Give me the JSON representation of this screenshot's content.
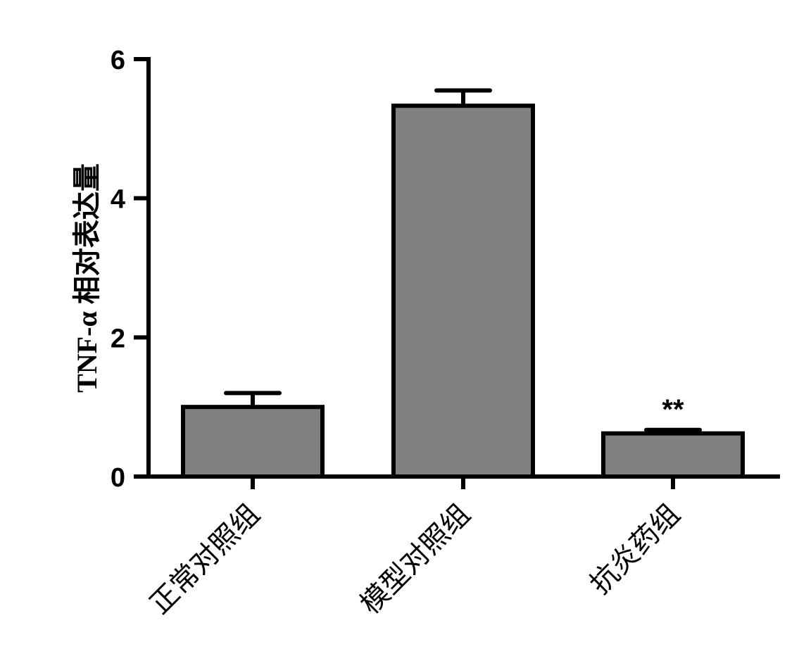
{
  "chart_data": {
    "type": "bar",
    "title": "",
    "xlabel": "",
    "ylabel": "TNF-α 相对表达量",
    "ylim": [
      0,
      6
    ],
    "yticks": [
      0,
      2,
      4,
      6
    ],
    "categories": [
      "正常对照组",
      "模型对照组",
      "抗炎药组"
    ],
    "values": [
      1.0,
      5.33,
      0.62
    ],
    "errors": [
      0.2,
      0.22,
      0.05
    ],
    "annotations": [
      "",
      "",
      "**"
    ],
    "bar_color": "#808080",
    "edge_color": "#000000",
    "grid": false,
    "legend": "none"
  }
}
